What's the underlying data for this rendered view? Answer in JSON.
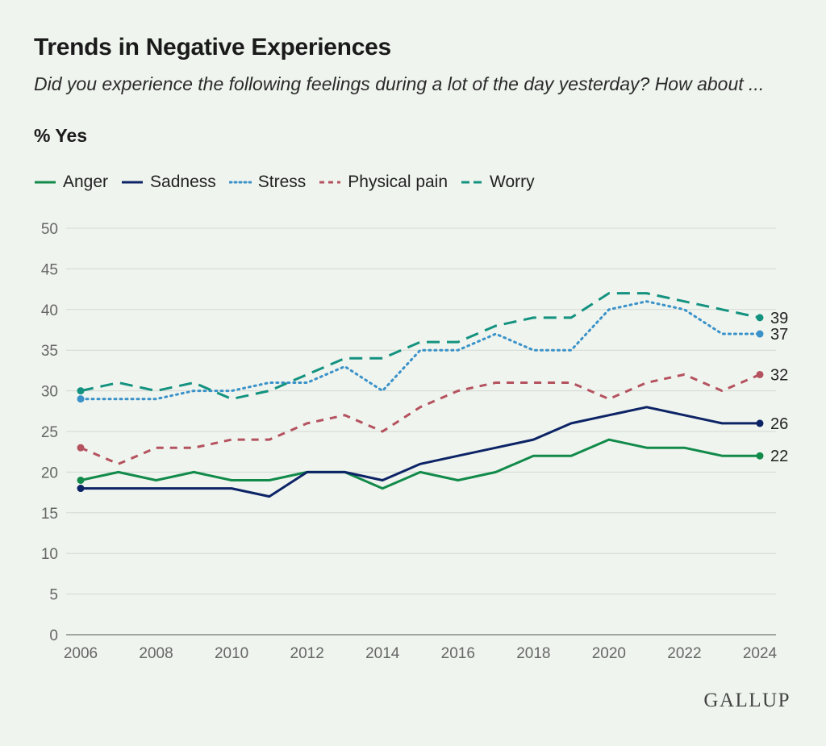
{
  "title": "Trends in Negative Experiences",
  "subtitle": "Did you experience the following feelings during a lot of the day yesterday? How about ...",
  "unit_label": "% Yes",
  "brand": "GALLUP",
  "chart_data": {
    "type": "line",
    "x": [
      2006,
      2007,
      2008,
      2009,
      2010,
      2011,
      2012,
      2013,
      2014,
      2015,
      2016,
      2017,
      2018,
      2019,
      2020,
      2021,
      2022,
      2023,
      2024
    ],
    "x_ticks": [
      "2006",
      "2008",
      "2010",
      "2012",
      "2014",
      "2016",
      "2018",
      "2020",
      "2022",
      "2024"
    ],
    "y_ticks": [
      "0",
      "5",
      "10",
      "15",
      "20",
      "25",
      "30",
      "35",
      "40",
      "45",
      "50"
    ],
    "ylim": [
      0,
      50
    ],
    "grid": true,
    "legend_position": "top-left",
    "series": [
      {
        "name": "Anger",
        "color": "#118a4a",
        "dash": "solid",
        "values": [
          19,
          20,
          19,
          20,
          19,
          19,
          20,
          20,
          18,
          20,
          19,
          20,
          22,
          22,
          24,
          23,
          23,
          22,
          22
        ],
        "end_label": "22"
      },
      {
        "name": "Sadness",
        "color": "#0c2366",
        "dash": "solid",
        "values": [
          18,
          18,
          18,
          18,
          18,
          17,
          20,
          20,
          19,
          21,
          22,
          23,
          24,
          26,
          27,
          28,
          27,
          26,
          26
        ],
        "end_label": "26"
      },
      {
        "name": "Stress",
        "color": "#3a92c9",
        "dash": "dotted",
        "values": [
          29,
          29,
          29,
          30,
          30,
          31,
          31,
          33,
          30,
          35,
          35,
          37,
          35,
          35,
          40,
          41,
          40,
          37,
          37
        ],
        "end_label": "37"
      },
      {
        "name": "Physical pain",
        "color": "#b5525f",
        "dash": "dashed",
        "values": [
          23,
          21,
          23,
          23,
          24,
          24,
          26,
          27,
          25,
          28,
          30,
          31,
          31,
          31,
          29,
          31,
          32,
          30,
          32
        ],
        "end_label": "32"
      },
      {
        "name": "Worry",
        "color": "#149280",
        "dash": "longdash",
        "values": [
          30,
          31,
          30,
          31,
          29,
          30,
          32,
          34,
          34,
          36,
          36,
          38,
          39,
          39,
          42,
          42,
          41,
          40,
          39
        ],
        "end_label": "39"
      }
    ]
  }
}
